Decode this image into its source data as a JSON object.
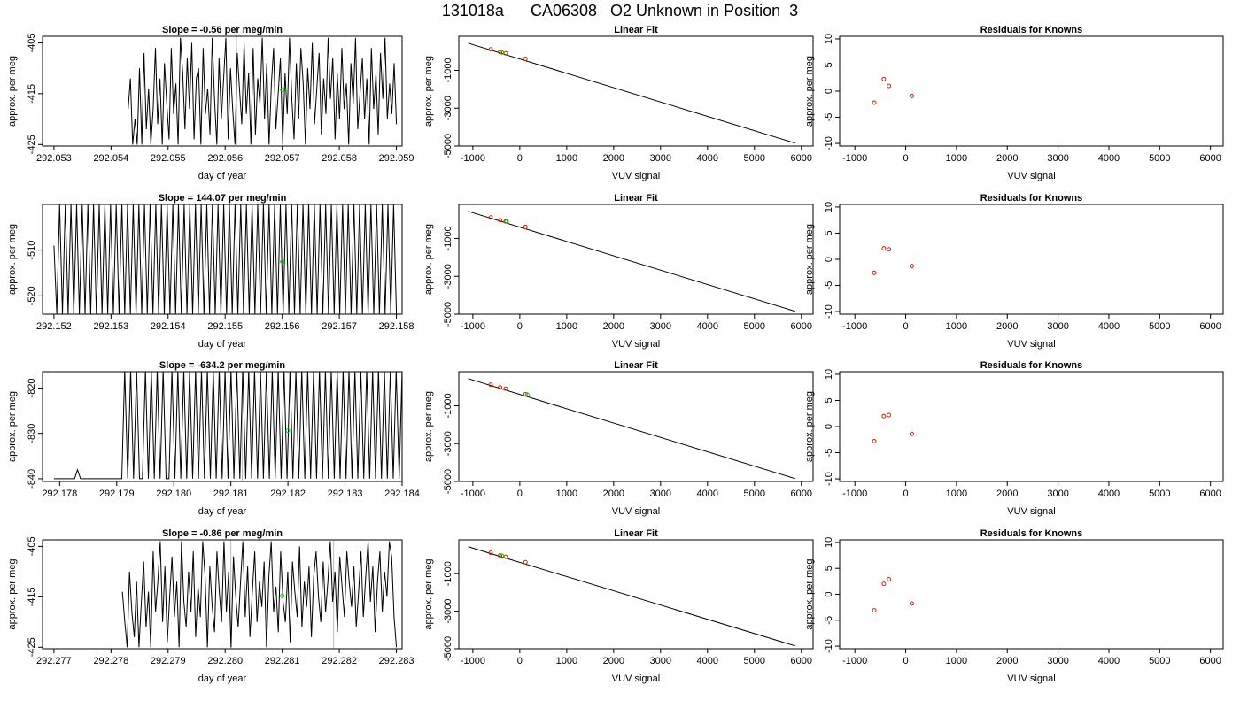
{
  "figure_title": "131018a      CA06308   O2 Unknown in Position  3",
  "colors": {
    "trace": "#000000",
    "unknown": "#00cc00",
    "known": "#cc2200",
    "gridline": "#bbbbbb"
  },
  "chart_data": [
    {
      "type": "line",
      "row": 1,
      "col": 1,
      "title": "Slope =  -0.56  per meg/min",
      "xlabel": "day of year",
      "ylabel": "approx. per meg",
      "xticks": [
        "292.053",
        "292.054",
        "292.055",
        "292.056",
        "292.057",
        "292.058",
        "292.059"
      ],
      "yticks": [
        "-405",
        "-415",
        "-425"
      ],
      "xlim": [
        292.0528,
        292.0591
      ],
      "ylim": [
        -425.3,
        -403.7
      ],
      "x_start": 292.0543,
      "x_end": 292.059,
      "y": [
        -418,
        -412,
        -425,
        -420,
        -425,
        -410,
        -425,
        -407,
        -422,
        -414,
        -425,
        -418,
        -406,
        -421,
        -412,
        -425,
        -409,
        -417,
        -424,
        -406,
        -419,
        -413,
        -425,
        -404,
        -411,
        -422,
        -408,
        -418,
        -405,
        -424,
        -412,
        -410,
        -425,
        -406,
        -419,
        -414,
        -423,
        -404,
        -416,
        -425,
        -408,
        -420,
        -412,
        -404,
        -424,
        -410,
        -418,
        -425,
        -407,
        -414,
        -421,
        -405,
        -419,
        -411,
        -425,
        -406,
        -423,
        -412,
        -417,
        -404,
        -420,
        -409,
        -425,
        -413,
        -406,
        -422,
        -415,
        -408,
        -425,
        -411,
        -419,
        -404,
        -416,
        -424,
        -409,
        -420,
        -406,
        -413,
        -425,
        -410,
        -418,
        -405,
        -421,
        -414,
        -407,
        -423,
        -412,
        -419,
        -404,
        -416,
        -408,
        -424,
        -411,
        -420,
        -406,
        -418,
        -413,
        -425,
        -409,
        -417,
        -404,
        -422,
        -415,
        -408,
        -420,
        -412,
        -425,
        -406,
        -418,
        -411,
        -423,
        -407,
        -416,
        -404,
        -420,
        -413,
        -419,
        -409,
        -421
      ],
      "unknown_point": [
        292.057,
        -414.2
      ],
      "gray_lines": [
        292.0562,
        292.0581
      ]
    },
    {
      "type": "scatter",
      "row": 1,
      "col": 2,
      "title": "Linear Fit",
      "xlabel": "VUV signal",
      "ylabel": "approx. per meg",
      "xticks": [
        "-1000",
        "0",
        "1000",
        "2000",
        "3000",
        "4000",
        "5000",
        "6000"
      ],
      "yticks": [
        "-1000",
        "-3000",
        "-5000"
      ],
      "xlim": [
        -1300,
        6250
      ],
      "ylim": [
        -5000,
        800
      ],
      "fit_line": [
        [
          -1100,
          435
        ],
        [
          5870,
          -4850
        ]
      ],
      "known_points": [
        [
          -620,
          112
        ],
        [
          -420,
          -32
        ],
        [
          -300,
          -102
        ],
        [
          120,
          -390
        ]
      ],
      "unknown_points": [
        [
          -380,
          -52
        ]
      ]
    },
    {
      "type": "scatter",
      "row": 1,
      "col": 3,
      "title": "Residuals for Knowns",
      "xlabel": "VUV signal",
      "ylabel": "approx. per meg",
      "xticks": [
        "-1000",
        "0",
        "1000",
        "2000",
        "3000",
        "4000",
        "5000",
        "6000"
      ],
      "yticks": [
        "-10",
        "-5",
        "0",
        "5",
        "10"
      ],
      "xlim": [
        -1300,
        6250
      ],
      "ylim": [
        -10.5,
        10.5
      ],
      "known_points": [
        [
          -620,
          -2.2
        ],
        [
          -430,
          2.3
        ],
        [
          -330,
          1.0
        ],
        [
          120,
          -0.9
        ]
      ]
    },
    {
      "type": "line",
      "row": 2,
      "col": 1,
      "title": "Slope =  144.07  per meg/min",
      "xlabel": "day of year",
      "ylabel": "approx. per meg",
      "xticks": [
        "292.152",
        "292.153",
        "292.154",
        "292.155",
        "292.156",
        "292.157",
        "292.158"
      ],
      "yticks": [
        "-510",
        "-520"
      ],
      "xlim": [
        292.1518,
        292.1581
      ],
      "ylim": [
        -524,
        -500
      ],
      "x_start": 292.152,
      "x_end": 292.158,
      "y": [
        -509,
        -524,
        -500,
        -524,
        -500,
        -524,
        -500,
        -524,
        -500,
        -524,
        -500,
        -524,
        -500,
        -524,
        -500,
        -524,
        -500,
        -524,
        -500,
        -524,
        -500,
        -524,
        -500,
        -524,
        -500,
        -524,
        -500,
        -524,
        -500,
        -524,
        -500,
        -524,
        -500,
        -524,
        -500,
        -524,
        -500,
        -524,
        -500,
        -524,
        -500,
        -524,
        -500,
        -524,
        -500,
        -524,
        -500,
        -524,
        -500,
        -524,
        -500,
        -524,
        -500,
        -524,
        -500,
        -524,
        -500,
        -524,
        -500,
        -524,
        -500,
        -524,
        -500,
        -524,
        -500,
        -524,
        -500,
        -524,
        -500,
        -524,
        -500,
        -524,
        -500,
        -524,
        -500,
        -524,
        -500,
        -524,
        -500,
        -524,
        -500,
        -524,
        -500,
        -524,
        -500,
        -524,
        -500,
        -524,
        -500,
        -524,
        -500,
        -524,
        -500,
        -524,
        -500,
        -524,
        -500,
        -524,
        -500,
        -524,
        -500,
        -524,
        -500,
        -524,
        -500,
        -524,
        -500,
        -524,
        -500,
        -524,
        -500,
        -524,
        -500,
        -524,
        -500,
        -524,
        -500,
        -524,
        -500,
        -524,
        -500,
        -524
      ],
      "unknown_point": [
        292.156,
        -512.5
      ],
      "gray_lines": []
    },
    {
      "type": "scatter",
      "row": 2,
      "col": 2,
      "title": "Linear Fit",
      "xlabel": "VUV signal",
      "ylabel": "approx. per meg",
      "xticks": [
        "-1000",
        "0",
        "1000",
        "2000",
        "3000",
        "4000",
        "5000",
        "6000"
      ],
      "yticks": [
        "-1000",
        "-3000",
        "-5000"
      ],
      "xlim": [
        -1300,
        6250
      ],
      "ylim": [
        -5000,
        800
      ],
      "fit_line": [
        [
          -1100,
          435
        ],
        [
          5870,
          -4850
        ]
      ],
      "known_points": [
        [
          -620,
          112
        ],
        [
          -420,
          -32
        ],
        [
          -300,
          -102
        ],
        [
          120,
          -390
        ]
      ],
      "unknown_points": [
        [
          -280,
          -112
        ]
      ]
    },
    {
      "type": "scatter",
      "row": 2,
      "col": 3,
      "title": "Residuals for Knowns",
      "xlabel": "VUV signal",
      "ylabel": "approx. per meg",
      "xticks": [
        "-1000",
        "0",
        "1000",
        "2000",
        "3000",
        "4000",
        "5000",
        "6000"
      ],
      "yticks": [
        "-10",
        "-5",
        "0",
        "5",
        "10"
      ],
      "xlim": [
        -1300,
        6250
      ],
      "ylim": [
        -10.5,
        10.5
      ],
      "known_points": [
        [
          -620,
          -2.6
        ],
        [
          -430,
          2.1
        ],
        [
          -330,
          1.9
        ],
        [
          120,
          -1.3
        ]
      ]
    },
    {
      "type": "line",
      "row": 3,
      "col": 1,
      "title": "Slope =  -634.2  per meg/min",
      "xlabel": "day of year",
      "ylabel": "approx. per meg",
      "xticks": [
        "292.178",
        "292.179",
        "292.180",
        "292.181",
        "292.182",
        "292.183",
        "292.184"
      ],
      "yticks": [
        "-820",
        "-830",
        "-840"
      ],
      "xlim": [
        292.1777,
        292.184
      ],
      "ylim": [
        -840.6,
        -816.4
      ],
      "x_start": 292.1779,
      "x_end": 292.184,
      "y": [
        -840,
        -840,
        -840,
        -840,
        -840,
        -840,
        -840,
        -840,
        -838,
        -840,
        -840,
        -840,
        -840,
        -840,
        -840,
        -840,
        -840,
        -840,
        -840,
        -840,
        -840,
        -840,
        -840,
        -840,
        -816,
        -840,
        -816,
        -840,
        -816,
        -840,
        -840,
        -816,
        -840,
        -816,
        -840,
        -816,
        -840,
        -816,
        -840,
        -840,
        -816,
        -840,
        -816,
        -840,
        -816,
        -840,
        -816,
        -840,
        -816,
        -840,
        -816,
        -840,
        -816,
        -840,
        -816,
        -840,
        -816,
        -840,
        -816,
        -840,
        -816,
        -840,
        -816,
        -840,
        -816,
        -840,
        -816,
        -840,
        -816,
        -840,
        -816,
        -840,
        -816,
        -840,
        -816,
        -840,
        -816,
        -840,
        -816,
        -840,
        -816,
        -840,
        -816,
        -840,
        -816,
        -840,
        -816,
        -840,
        -816,
        -840,
        -816,
        -840,
        -816,
        -840,
        -816,
        -840,
        -816,
        -840,
        -816,
        -840,
        -816,
        -840,
        -816,
        -840,
        -816,
        -840,
        -816,
        -840,
        -816,
        -840,
        -816,
        -840,
        -816,
        -840,
        -816,
        -840,
        -816,
        -840,
        -816
      ],
      "unknown_point": [
        292.182,
        -829.4
      ],
      "gray_lines": [
        292.1812
      ]
    },
    {
      "type": "scatter",
      "row": 3,
      "col": 2,
      "title": "Linear Fit",
      "xlabel": "VUV signal",
      "ylabel": "approx. per meg",
      "xticks": [
        "-1000",
        "0",
        "1000",
        "2000",
        "3000",
        "4000",
        "5000",
        "6000"
      ],
      "yticks": [
        "-1000",
        "-3000",
        "-5000"
      ],
      "xlim": [
        -1300,
        6250
      ],
      "ylim": [
        -5000,
        800
      ],
      "fit_line": [
        [
          -1100,
          435
        ],
        [
          5870,
          -4850
        ]
      ],
      "known_points": [
        [
          -620,
          112
        ],
        [
          -420,
          -32
        ],
        [
          -300,
          -102
        ],
        [
          120,
          -390
        ]
      ],
      "unknown_points": [
        [
          160,
          -410
        ]
      ]
    },
    {
      "type": "scatter",
      "row": 3,
      "col": 3,
      "title": "Residuals for Knowns",
      "xlabel": "VUV signal",
      "ylabel": "approx. per meg",
      "xticks": [
        "-1000",
        "0",
        "1000",
        "2000",
        "3000",
        "4000",
        "5000",
        "6000"
      ],
      "yticks": [
        "-10",
        "-5",
        "0",
        "5",
        "10"
      ],
      "xlim": [
        -1300,
        6250
      ],
      "ylim": [
        -10.5,
        10.5
      ],
      "known_points": [
        [
          -620,
          -2.8
        ],
        [
          -430,
          2.0
        ],
        [
          -330,
          2.2
        ],
        [
          120,
          -1.4
        ]
      ]
    },
    {
      "type": "line",
      "row": 4,
      "col": 1,
      "title": "Slope =  -0.86  per meg/min",
      "xlabel": "day of year",
      "ylabel": "approx. per meg",
      "xticks": [
        "292.277",
        "292.278",
        "292.279",
        "292.280",
        "292.281",
        "292.282",
        "292.283"
      ],
      "yticks": [
        "-405",
        "-415",
        "-425"
      ],
      "xlim": [
        292.2768,
        292.2831
      ],
      "ylim": [
        -425.3,
        -403.7
      ],
      "x_start": 292.2782,
      "x_end": 292.283,
      "y": [
        -414,
        -420,
        -425,
        -410,
        -418,
        -423,
        -412,
        -425,
        -416,
        -408,
        -421,
        -414,
        -425,
        -406,
        -418,
        -412,
        -404,
        -420,
        -409,
        -424,
        -415,
        -407,
        -419,
        -412,
        -425,
        -404,
        -416,
        -421,
        -410,
        -418,
        -406,
        -423,
        -413,
        -419,
        -404,
        -411,
        -425,
        -409,
        -417,
        -422,
        -406,
        -414,
        -420,
        -404,
        -418,
        -410,
        -425,
        -407,
        -415,
        -421,
        -412,
        -404,
        -419,
        -409,
        -423,
        -414,
        -406,
        -420,
        -412,
        -417,
        -408,
        -425,
        -411,
        -404,
        -418,
        -413,
        -422,
        -406,
        -416,
        -420,
        -410,
        -424,
        -408,
        -414,
        -419,
        -405,
        -421,
        -412,
        -417,
        -409,
        -423,
        -411,
        -406,
        -415,
        -420,
        -408,
        -418,
        -412,
        -404,
        -416,
        -410,
        -422,
        -407,
        -413,
        -419,
        -406,
        -412,
        -417,
        -409,
        -421,
        -414,
        -406,
        -419,
        -411,
        -404,
        -416,
        -409,
        -422,
        -412,
        -406,
        -418,
        -410,
        -415,
        -404,
        -407,
        -419,
        -425
      ],
      "unknown_point": [
        292.281,
        -414.8
      ],
      "gray_lines": [
        292.2801,
        292.2819
      ]
    },
    {
      "type": "scatter",
      "row": 4,
      "col": 2,
      "title": "Linear Fit",
      "xlabel": "VUV signal",
      "ylabel": "approx. per meg",
      "xticks": [
        "-1000",
        "0",
        "1000",
        "2000",
        "3000",
        "4000",
        "5000",
        "6000"
      ],
      "yticks": [
        "-1000",
        "-3000",
        "-5000"
      ],
      "xlim": [
        -1300,
        6250
      ],
      "ylim": [
        -5000,
        800
      ],
      "fit_line": [
        [
          -1100,
          435
        ],
        [
          5870,
          -4850
        ]
      ],
      "known_points": [
        [
          -620,
          112
        ],
        [
          -420,
          -32
        ],
        [
          -300,
          -102
        ],
        [
          120,
          -390
        ]
      ],
      "unknown_points": [
        [
          -380,
          -52
        ]
      ]
    },
    {
      "type": "scatter",
      "row": 4,
      "col": 3,
      "title": "Residuals for Knowns",
      "xlabel": "VUV signal",
      "ylabel": "approx. per meg",
      "xticks": [
        "-1000",
        "0",
        "1000",
        "2000",
        "3000",
        "4000",
        "5000",
        "6000"
      ],
      "yticks": [
        "-10",
        "-5",
        "0",
        "5",
        "10"
      ],
      "xlim": [
        -1300,
        6250
      ],
      "ylim": [
        -10.5,
        10.5
      ],
      "known_points": [
        [
          -620,
          -3.1
        ],
        [
          -430,
          2.0
        ],
        [
          -330,
          2.9
        ],
        [
          120,
          -1.8
        ]
      ]
    }
  ]
}
